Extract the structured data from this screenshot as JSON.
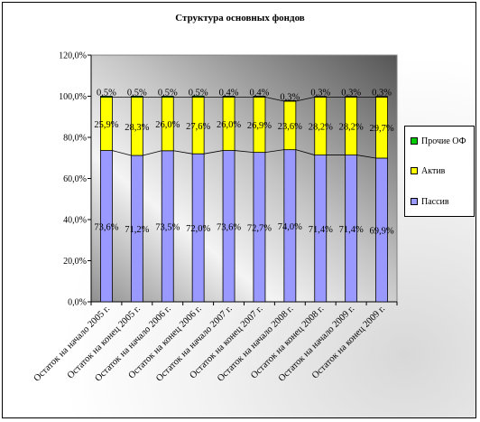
{
  "chart_data": {
    "type": "bar",
    "stacked": true,
    "title": "Структура основных фондов",
    "xlabel": "",
    "ylabel": "",
    "ylim": [
      0,
      120
    ],
    "yticks": [
      "0,0%",
      "20,0%",
      "40,0%",
      "60,0%",
      "80,0%",
      "100,0%",
      "120,0%"
    ],
    "categories": [
      "Остаток на начало 2005 г.",
      "Остаток на конец 2005 г.",
      "Остаток на начало 2006 г.",
      "Остаток на конец 2006 г.",
      "Остаток на начало 2007 г.",
      "Остаток на конец 2007 г.",
      "Остаток на начало 2008 г.",
      "Остаток на конец 2008 г.",
      "Остаток на начало 2009 г.",
      "Остаток на конец 2009 г."
    ],
    "series": [
      {
        "name": "Пассив",
        "color": "#9999ff",
        "values": [
          73.6,
          71.2,
          73.5,
          72.0,
          73.6,
          72.7,
          74.0,
          71.4,
          71.4,
          69.9
        ],
        "labels": [
          "73,6%",
          "71,2%",
          "73,5%",
          "72,0%",
          "73,6%",
          "72,7%",
          "74,0%",
          "71,4%",
          "71,4%",
          "69,9%"
        ]
      },
      {
        "name": "Актив",
        "color": "#ffff00",
        "values": [
          25.9,
          28.3,
          26.0,
          27.6,
          26.0,
          26.9,
          23.6,
          28.2,
          28.2,
          29.7
        ],
        "labels": [
          "25,9%",
          "28,3%",
          "26,0%",
          "27,6%",
          "26,0%",
          "26,9%",
          "23,6%",
          "28,2%",
          "28,2%",
          "29,7%"
        ]
      },
      {
        "name": "Прочие ОФ",
        "color": "#00cc00",
        "values": [
          0.5,
          0.5,
          0.5,
          0.5,
          0.4,
          0.4,
          0.3,
          0.3,
          0.3,
          0.3
        ],
        "labels": [
          "0,5%",
          "0,5%",
          "0,5%",
          "0,5%",
          "0,4%",
          "0,4%",
          "0,3%",
          "0,3%",
          "0,3%",
          "0,3%"
        ]
      }
    ],
    "legend_position": "right",
    "legend_order": [
      "Прочие ОФ",
      "Актив",
      "Пассив"
    ],
    "series_lines": true,
    "grid": false
  }
}
